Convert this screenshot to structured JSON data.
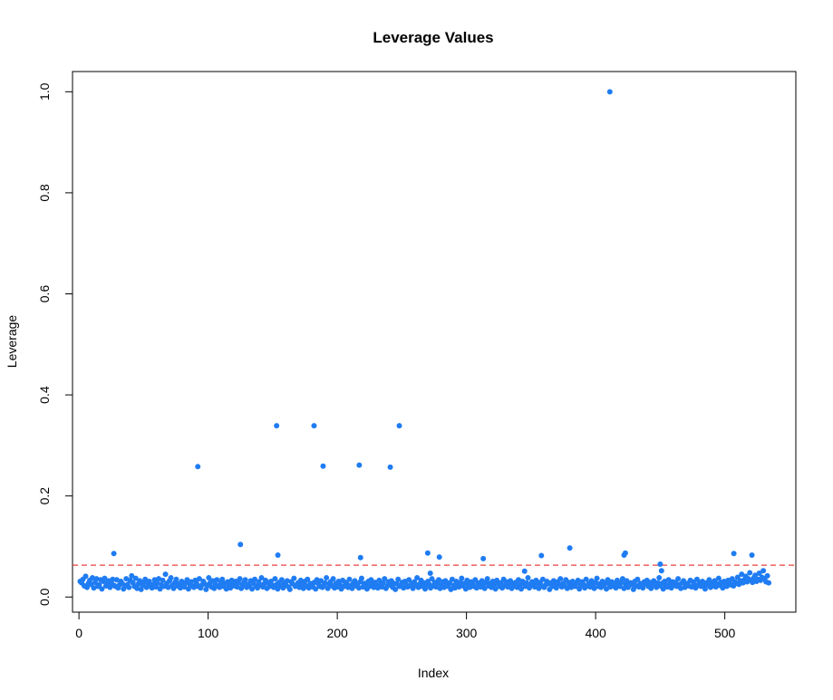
{
  "chart_data": {
    "type": "scatter",
    "title": "Leverage Values",
    "xlabel": "Index",
    "ylabel": "Leverage",
    "xlim": [
      -5,
      555
    ],
    "ylim": [
      -0.03,
      1.04
    ],
    "x_ticks": [
      0,
      100,
      200,
      300,
      400,
      500
    ],
    "y_ticks": [
      0.0,
      0.2,
      0.4,
      0.6,
      0.8,
      1.0
    ],
    "x_tick_labels": [
      "0",
      "100",
      "200",
      "300",
      "400",
      "500"
    ],
    "y_tick_labels": [
      "0.0",
      "0.2",
      "0.4",
      "0.6",
      "0.8",
      "1.0"
    ],
    "reference_line": {
      "y": 0.063,
      "color": "#e8413c",
      "style": "dashed"
    },
    "point_color": "#1f7cf2",
    "grid": false,
    "legend": "none",
    "series": [
      {
        "x": [
          1,
          27,
          92,
          125,
          153,
          154,
          182,
          189,
          217,
          218,
          241,
          248,
          270,
          272,
          279,
          313,
          345,
          358,
          380,
          411,
          422,
          423,
          450,
          451,
          507,
          521
        ],
        "y": [
          0.031,
          0.086,
          0.258,
          0.104,
          0.339,
          0.083,
          0.339,
          0.259,
          0.261,
          0.078,
          0.257,
          0.339,
          0.087,
          0.047,
          0.079,
          0.076,
          0.051,
          0.082,
          0.097,
          1.0,
          0.083,
          0.087,
          0.065,
          0.052,
          0.086,
          0.083
        ]
      },
      {
        "x_start": 1,
        "x_end": 534,
        "y": [
          0.031,
          0.028,
          0.035,
          0.022,
          0.041,
          0.019,
          0.027,
          0.033,
          0.025,
          0.038,
          0.018,
          0.029,
          0.036,
          0.021,
          0.024,
          0.034,
          0.016,
          0.031,
          0.037,
          0.022,
          0.026,
          0.032,
          0.019,
          0.028,
          0.035,
          0.023,
          0.021,
          0.034,
          0.018,
          0.024,
          0.031,
          0.027,
          0.016,
          0.022,
          0.036,
          0.025,
          0.019,
          0.033,
          0.042,
          0.028,
          0.021,
          0.037,
          0.017,
          0.026,
          0.032,
          0.015,
          0.023,
          0.029,
          0.035,
          0.019,
          0.027,
          0.031,
          0.022,
          0.018,
          0.025,
          0.034,
          0.02,
          0.028,
          0.036,
          0.016,
          0.024,
          0.033,
          0.021,
          0.045,
          0.027,
          0.019,
          0.032,
          0.038,
          0.023,
          0.017,
          0.029,
          0.035,
          0.022,
          0.026,
          0.018,
          0.031,
          0.024,
          0.02,
          0.028,
          0.034,
          0.016,
          0.025,
          0.03,
          0.022,
          0.019,
          0.033,
          0.027,
          0.021,
          0.036,
          0.018,
          0.024,
          0.031,
          0.026,
          0.015,
          0.023,
          0.038,
          0.028,
          0.02,
          0.032,
          0.017,
          0.025,
          0.034,
          0.022,
          0.019,
          0.029,
          0.035,
          0.021,
          0.027,
          0.016,
          0.03,
          0.024,
          0.018,
          0.033,
          0.026,
          0.022,
          0.031,
          0.02,
          0.028,
          0.036,
          0.017,
          0.023,
          0.029,
          0.034,
          0.019,
          0.025,
          0.021,
          0.032,
          0.016,
          0.027,
          0.035,
          0.022,
          0.018,
          0.03,
          0.024,
          0.038,
          0.02,
          0.026,
          0.033,
          0.017,
          0.028,
          0.021,
          0.031,
          0.023,
          0.019,
          0.036,
          0.025,
          0.016,
          0.029,
          0.022,
          0.034,
          0.018,
          0.027,
          0.024,
          0.032,
          0.02,
          0.015,
          0.03,
          0.026,
          0.037,
          0.021,
          0.023,
          0.028,
          0.019,
          0.033,
          0.025,
          0.017,
          0.031,
          0.022,
          0.035,
          0.018,
          0.027,
          0.024,
          0.02,
          0.029,
          0.016,
          0.034,
          0.026,
          0.021,
          0.032,
          0.019,
          0.023,
          0.028,
          0.038,
          0.017,
          0.025,
          0.03,
          0.022,
          0.036,
          0.018,
          0.027,
          0.02,
          0.031,
          0.024,
          0.016,
          0.033,
          0.021,
          0.029,
          0.026,
          0.019,
          0.035,
          0.023,
          0.017,
          0.028,
          0.032,
          0.022,
          0.025,
          0.018,
          0.03,
          0.037,
          0.02,
          0.027,
          0.024,
          0.016,
          0.031,
          0.021,
          0.034,
          0.026,
          0.019,
          0.029,
          0.023,
          0.018,
          0.033,
          0.025,
          0.02,
          0.028,
          0.036,
          0.017,
          0.022,
          0.03,
          0.024,
          0.032,
          0.019,
          0.027,
          0.015,
          0.026,
          0.035,
          0.021,
          0.023,
          0.029,
          0.018,
          0.031,
          0.025,
          0.02,
          0.034,
          0.022,
          0.027,
          0.017,
          0.03,
          0.024,
          0.038,
          0.019,
          0.026,
          0.033,
          0.021,
          0.028,
          0.016,
          0.023,
          0.031,
          0.025,
          0.018,
          0.036,
          0.022,
          0.029,
          0.02,
          0.027,
          0.034,
          0.017,
          0.024,
          0.03,
          0.019,
          0.032,
          0.026,
          0.021,
          0.028,
          0.015,
          0.035,
          0.023,
          0.018,
          0.031,
          0.025,
          0.02,
          0.029,
          0.037,
          0.022,
          0.027,
          0.016,
          0.033,
          0.024,
          0.019,
          0.03,
          0.026,
          0.021,
          0.034,
          0.018,
          0.028,
          0.023,
          0.02,
          0.032,
          0.025,
          0.017,
          0.029,
          0.036,
          0.022,
          0.027,
          0.019,
          0.031,
          0.024,
          0.016,
          0.033,
          0.026,
          0.021,
          0.028,
          0.018,
          0.035,
          0.023,
          0.03,
          0.02,
          0.025,
          0.032,
          0.017,
          0.027,
          0.022,
          0.029,
          0.019,
          0.034,
          0.024,
          0.016,
          0.031,
          0.026,
          0.021,
          0.028,
          0.038,
          0.018,
          0.023,
          0.03,
          0.025,
          0.02,
          0.033,
          0.027,
          0.017,
          0.029,
          0.022,
          0.035,
          0.019,
          0.024,
          0.031,
          0.026,
          0.015,
          0.028,
          0.021,
          0.032,
          0.023,
          0.018,
          0.03,
          0.025,
          0.036,
          0.02,
          0.027,
          0.022,
          0.034,
          0.017,
          0.029,
          0.024,
          0.019,
          0.031,
          0.026,
          0.021,
          0.028,
          0.033,
          0.016,
          0.023,
          0.03,
          0.025,
          0.018,
          0.035,
          0.022,
          0.027,
          0.02,
          0.032,
          0.024,
          0.017,
          0.029,
          0.037,
          0.021,
          0.026,
          0.019,
          0.031,
          0.023,
          0.028,
          0.016,
          0.034,
          0.025,
          0.02,
          0.03,
          0.022,
          0.027,
          0.018,
          0.033,
          0.024,
          0.021,
          0.029,
          0.036,
          0.017,
          0.026,
          0.032,
          0.019,
          0.023,
          0.028,
          0.025,
          0.015,
          0.031,
          0.022,
          0.035,
          0.02,
          0.027,
          0.024,
          0.018,
          0.03,
          0.026,
          0.033,
          0.021,
          0.029,
          0.017,
          0.025,
          0.032,
          0.023,
          0.019,
          0.028,
          0.038,
          0.022,
          0.027,
          0.016,
          0.031,
          0.024,
          0.02,
          0.034,
          0.026,
          0.018,
          0.03,
          0.023,
          0.029,
          0.021,
          0.036,
          0.025,
          0.017,
          0.028,
          0.032,
          0.019,
          0.024,
          0.027,
          0.022,
          0.033,
          0.02,
          0.03,
          0.026,
          0.018,
          0.035,
          0.023,
          0.029,
          0.021,
          0.031,
          0.025,
          0.016,
          0.028,
          0.024,
          0.034,
          0.019,
          0.027,
          0.022,
          0.032,
          0.02,
          0.026,
          0.037,
          0.023,
          0.029,
          0.018,
          0.031,
          0.025,
          0.021,
          0.033,
          0.028,
          0.024,
          0.036,
          0.022,
          0.03,
          0.027,
          0.039,
          0.025,
          0.032,
          0.045,
          0.028,
          0.034,
          0.041,
          0.03,
          0.036,
          0.048,
          0.033,
          0.029,
          0.038,
          0.043,
          0.031,
          0.035,
          0.047,
          0.033,
          0.039,
          0.052,
          0.036,
          0.03,
          0.042,
          0.028
        ]
      }
    ]
  }
}
